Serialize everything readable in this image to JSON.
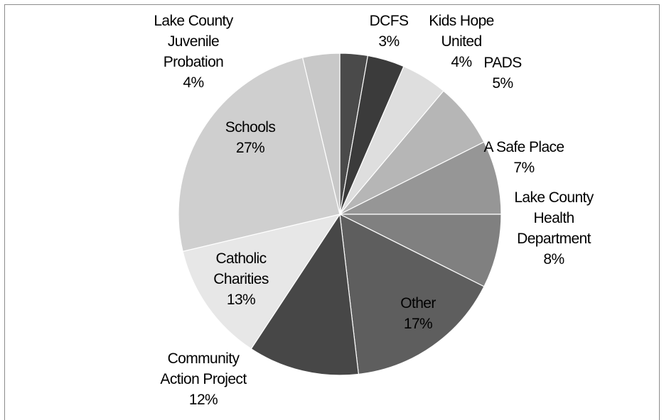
{
  "chart_data": {
    "type": "pie",
    "title": "",
    "start_angle_deg": 0,
    "direction": "clockwise",
    "slices": [
      {
        "label": [
          "DCFS",
          "3%"
        ],
        "value": 3,
        "color": "#4a4a4a"
      },
      {
        "label": [
          "Kids Hope",
          "United",
          "4%"
        ],
        "value": 4,
        "color": "#3b3b3b"
      },
      {
        "label": [
          "PADS",
          "5%"
        ],
        "value": 5,
        "color": "#dedede"
      },
      {
        "label": [
          "A Safe Place",
          "7%"
        ],
        "value": 7,
        "color": "#b6b6b6"
      },
      {
        "label": [
          "Lake County",
          "Health",
          "Department",
          "8%"
        ],
        "value": 8,
        "color": "#969696"
      },
      {
        "label": [
          "Lake County",
          "Health",
          "Department",
          "8%"
        ],
        "value": 8,
        "color": "#808080"
      },
      {
        "label": [
          "Other",
          "17%"
        ],
        "value": 17,
        "color": "#5e5e5e"
      },
      {
        "label": [
          "Community",
          "Action Project",
          "12%"
        ],
        "value": 12,
        "color": "#474747"
      },
      {
        "label": [
          "Catholic",
          "Charities",
          "13%"
        ],
        "value": 13,
        "color": "#e7e7e7"
      },
      {
        "label": [
          "Schools",
          "27%"
        ],
        "value": 27,
        "color": "#cfcfcf"
      },
      {
        "label": [
          "Lake County",
          "Juvenile",
          "Probation",
          "4%"
        ],
        "value": 4,
        "color": "#c8c8c8"
      }
    ]
  }
}
